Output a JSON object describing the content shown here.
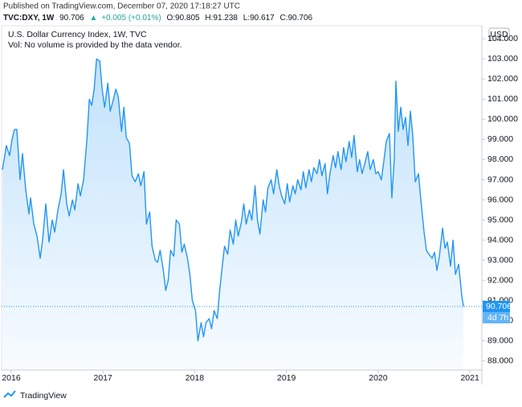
{
  "header": {
    "published": "Published on TradingView.com, December 07, 2020 17:18:27 UTC",
    "symbol": "TVC:DXY, 1W",
    "last": "90.706",
    "arrow": "▲",
    "change": "+0.005 (+0.01%)",
    "open": "O:90.805",
    "high": "H:91.238",
    "low": "L:90.617",
    "close": "C:90.706"
  },
  "chart_data": {
    "type": "area",
    "title": "U.S. Dollar Currency Index, 1W, TVC",
    "subtitle": "Vol: No volume is provided by the data vendor.",
    "currency": "USD",
    "color": "#2196f3",
    "grid": false,
    "x": [
      2015.904,
      2015.947,
      2015.982,
      2016.009,
      2016.035,
      2016.061,
      2016.096,
      2016.123,
      2016.158,
      2016.193,
      2016.211,
      2016.246,
      2016.281,
      2016.316,
      2016.342,
      2016.377,
      2016.412,
      2016.447,
      2016.474,
      2016.509,
      2016.544,
      2016.57,
      2016.605,
      2016.632,
      2016.667,
      2016.693,
      2016.728,
      2016.754,
      2016.789,
      2016.825,
      2016.851,
      2016.877,
      2016.904,
      2016.93,
      2016.965,
      2016.991,
      2017.018,
      2017.053,
      2017.079,
      2017.114,
      2017.14,
      2017.167,
      2017.202,
      2017.228,
      2017.254,
      2017.289,
      2017.316,
      2017.351,
      2017.386,
      2017.412,
      2017.447,
      2017.474,
      2017.509,
      2017.535,
      2017.57,
      2017.596,
      2017.623,
      2017.658,
      2017.684,
      2017.711,
      2017.737,
      2017.772,
      2017.798,
      2017.833,
      2017.86,
      2017.886,
      2017.921,
      2017.947,
      2017.974,
      2018.009,
      2018.035,
      2018.07,
      2018.096,
      2018.123,
      2018.158,
      2018.184,
      2018.211,
      2018.246,
      2018.272,
      2018.298,
      2018.325,
      2018.36,
      2018.386,
      2018.421,
      2018.447,
      2018.474,
      2018.509,
      2018.535,
      2018.561,
      2018.596,
      2018.623,
      2018.658,
      2018.684,
      2018.711,
      2018.746,
      2018.772,
      2018.798,
      2018.833,
      2018.86,
      2018.895,
      2018.921,
      2018.947,
      2018.982,
      2019.009,
      2019.035,
      2019.07,
      2019.096,
      2019.123,
      2019.158,
      2019.184,
      2019.211,
      2019.246,
      2019.272,
      2019.298,
      2019.333,
      2019.36,
      2019.386,
      2019.421,
      2019.447,
      2019.474,
      2019.509,
      2019.535,
      2019.561,
      2019.596,
      2019.623,
      2019.649,
      2019.684,
      2019.711,
      2019.737,
      2019.772,
      2019.798,
      2019.825,
      2019.86,
      2019.886,
      2019.912,
      2019.947,
      2019.974,
      2020,
      2020.035,
      2020.061,
      2020.088,
      2020.123,
      2020.149,
      2020.175,
      2020.193,
      2020.219,
      2020.246,
      2020.272,
      2020.298,
      2020.325,
      2020.351,
      2020.377,
      2020.404,
      2020.439,
      2020.465,
      2020.5,
      2020.526,
      2020.553,
      2020.588,
      2020.614,
      2020.64,
      2020.667,
      2020.702,
      2020.728,
      2020.754,
      2020.789,
      2020.816,
      2020.842,
      2020.877,
      2020.912,
      2020.93
    ],
    "values": [
      97.5,
      98.7,
      98.2,
      99.0,
      99.5,
      99.5,
      97.0,
      98.3,
      96.5,
      95.3,
      96.1,
      94.8,
      94.2,
      93.1,
      94.0,
      95.8,
      93.9,
      95.0,
      94.4,
      95.5,
      96.3,
      97.5,
      95.8,
      95.2,
      96.0,
      95.5,
      96.8,
      96.2,
      97.0,
      99.0,
      101.0,
      100.7,
      101.5,
      103.0,
      102.9,
      101.5,
      100.6,
      101.8,
      100.4,
      101.0,
      101.5,
      101.1,
      99.4,
      100.6,
      99.1,
      98.8,
      97.2,
      96.9,
      97.3,
      96.7,
      97.4,
      94.8,
      95.4,
      93.7,
      93.0,
      92.9,
      93.5,
      92.5,
      91.5,
      92.0,
      93.5,
      93.2,
      95.0,
      94.8,
      93.4,
      93.8,
      93.1,
      92.3,
      91.0,
      90.5,
      89.0,
      89.9,
      89.2,
      89.9,
      90.1,
      89.6,
      90.5,
      90.1,
      91.5,
      92.6,
      93.7,
      93.3,
      94.5,
      93.8,
      95.0,
      94.2,
      94.9,
      95.8,
      94.8,
      95.5,
      95.0,
      96.7,
      95.0,
      94.3,
      96.0,
      95.4,
      96.6,
      97.0,
      96.3,
      97.5,
      96.7,
      96.2,
      95.8,
      96.8,
      95.9,
      96.7,
      96.3,
      97.0,
      96.5,
      97.4,
      96.6,
      97.5,
      96.9,
      97.6,
      97.3,
      98.0,
      97.2,
      97.8,
      96.3,
      97.3,
      98.2,
      97.6,
      98.4,
      97.5,
      98.6,
      97.9,
      98.9,
      98.1,
      99.2,
      97.4,
      98.0,
      97.3,
      97.9,
      98.4,
      97.5,
      98.0,
      97.3,
      97.4,
      97.0,
      97.9,
      98.9,
      99.3,
      96.1,
      98.0,
      101.9,
      99.4,
      100.6,
      99.5,
      100.1,
      98.7,
      100.4,
      99.2,
      96.9,
      97.3,
      96.0,
      94.4,
      93.5,
      93.3,
      93.1,
      93.4,
      92.5,
      93.2,
      94.6,
      93.6,
      93.9,
      92.7,
      94.0,
      92.3,
      92.8,
      91.2,
      90.706
    ],
    "last_price": 90.706,
    "countdown": "4d 7h",
    "xlim": [
      2015.895,
      2021.13
    ],
    "xticks": [
      2016,
      2017,
      2018,
      2019,
      2020,
      2021
    ],
    "ylim": [
      87.55,
      104.65
    ],
    "yticks": [
      {
        "value": 88,
        "label": "88.000"
      },
      {
        "value": 89,
        "label": "89.000"
      },
      {
        "value": 90,
        "label": "90.000"
      },
      {
        "value": 91,
        "label": "91.000"
      },
      {
        "value": 92,
        "label": "92.000"
      },
      {
        "value": 93,
        "label": "93.000"
      },
      {
        "value": 94,
        "label": "94.000"
      },
      {
        "value": 95,
        "label": "95.000"
      },
      {
        "value": 96,
        "label": "96.000"
      },
      {
        "value": 97,
        "label": "97.000"
      },
      {
        "value": 98,
        "label": "98.000"
      },
      {
        "value": 99,
        "label": "99.000"
      },
      {
        "value": 100,
        "label": "100.000"
      },
      {
        "value": 101,
        "label": "101.000"
      },
      {
        "value": 102,
        "label": "102.000"
      },
      {
        "value": 103,
        "label": "103.000"
      },
      {
        "value": 104,
        "label": "104.000"
      }
    ]
  },
  "footer": {
    "brand": "TradingView"
  }
}
